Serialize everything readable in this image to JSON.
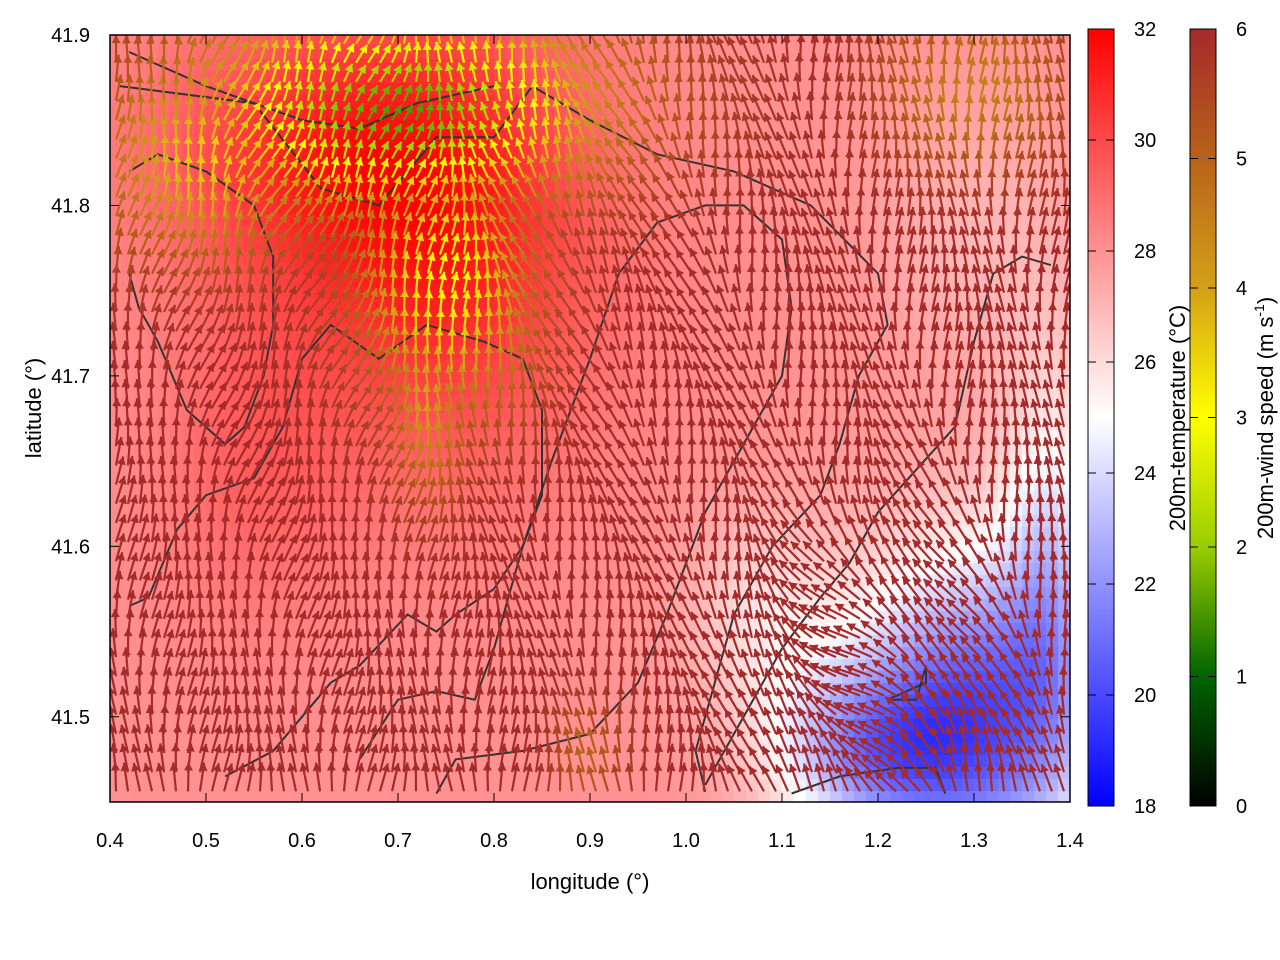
{
  "chart_data": {
    "type": "heatmap",
    "title": "",
    "xlabel": "longitude (°)",
    "ylabel": "latitude (°)",
    "xlim": [
      0.4,
      1.4
    ],
    "ylim": [
      41.45,
      41.9
    ],
    "xticks": [
      {
        "v": 0.4,
        "label": "0.4"
      },
      {
        "v": 0.5,
        "label": "0.5"
      },
      {
        "v": 0.6,
        "label": "0.6"
      },
      {
        "v": 0.7,
        "label": "0.7"
      },
      {
        "v": 0.8,
        "label": "0.8"
      },
      {
        "v": 0.9,
        "label": "0.9"
      },
      {
        "v": 1.0,
        "label": "1.0"
      },
      {
        "v": 1.1,
        "label": "1.1"
      },
      {
        "v": 1.2,
        "label": "1.2"
      },
      {
        "v": 1.3,
        "label": "1.3"
      },
      {
        "v": 1.4,
        "label": "1.4"
      }
    ],
    "yticks": [
      {
        "v": 41.5,
        "label": "41.5"
      },
      {
        "v": 41.6,
        "label": "41.6"
      },
      {
        "v": 41.7,
        "label": "41.7"
      },
      {
        "v": 41.8,
        "label": "41.8"
      },
      {
        "v": 41.9,
        "label": "41.9"
      }
    ],
    "temperature_colorbar": {
      "label": "200m-temperature (°C)",
      "range": [
        18,
        32
      ],
      "ticks": [
        {
          "v": 18,
          "label": "18"
        },
        {
          "v": 20,
          "label": "20"
        },
        {
          "v": 22,
          "label": "22"
        },
        {
          "v": 24,
          "label": "24"
        },
        {
          "v": 26,
          "label": "26"
        },
        {
          "v": 28,
          "label": "28"
        },
        {
          "v": 30,
          "label": "30"
        },
        {
          "v": 32,
          "label": "32"
        }
      ],
      "colors": [
        "#0000ff",
        "#ffffff",
        "#ff0000"
      ]
    },
    "wind_colorbar": {
      "label_main": "200m-wind speed (m s",
      "label_sup": "-1",
      "label_end": ")",
      "range": [
        0,
        6
      ],
      "ticks": [
        {
          "v": 0,
          "label": "0"
        },
        {
          "v": 1,
          "label": "1"
        },
        {
          "v": 2,
          "label": "2"
        },
        {
          "v": 3,
          "label": "3"
        },
        {
          "v": 4,
          "label": "4"
        },
        {
          "v": 5,
          "label": "5"
        },
        {
          "v": 6,
          "label": "6"
        }
      ],
      "colors": [
        "#000000",
        "#006400",
        "#9acd00",
        "#ffff00",
        "#d4a017",
        "#b8621b",
        "#a52a2a"
      ]
    },
    "contour_color": "#333333",
    "contours": [
      [
        [
          0.41,
          41.87
        ],
        [
          0.55,
          41.86
        ],
        [
          0.62,
          41.81
        ],
        [
          0.68,
          41.8
        ],
        [
          0.74,
          41.84
        ],
        [
          0.8,
          41.84
        ],
        [
          0.84,
          41.87
        ],
        [
          0.9,
          41.85
        ],
        [
          0.97,
          41.83
        ],
        [
          1.05,
          41.82
        ],
        [
          1.13,
          41.8
        ],
        [
          1.2,
          41.76
        ],
        [
          1.21,
          41.73
        ],
        [
          1.18,
          41.7
        ],
        [
          1.16,
          41.66
        ],
        [
          1.14,
          41.63
        ],
        [
          1.09,
          41.6
        ],
        [
          1.05,
          41.56
        ],
        [
          1.03,
          41.52
        ],
        [
          1.01,
          41.48
        ],
        [
          1.02,
          41.456
        ]
      ],
      [
        [
          0.42,
          41.565
        ],
        [
          0.44,
          41.57
        ],
        [
          0.47,
          41.61
        ],
        [
          0.5,
          41.63
        ],
        [
          0.55,
          41.64
        ],
        [
          0.58,
          41.67
        ],
        [
          0.6,
          41.71
        ],
        [
          0.63,
          41.73
        ],
        [
          0.68,
          41.71
        ],
        [
          0.73,
          41.73
        ],
        [
          0.79,
          41.72
        ],
        [
          0.83,
          41.71
        ],
        [
          0.85,
          41.68
        ],
        [
          0.85,
          41.63
        ],
        [
          0.83,
          41.6
        ],
        [
          0.8,
          41.575
        ],
        [
          0.76,
          41.56
        ],
        [
          0.74,
          41.55
        ],
        [
          0.71,
          41.56
        ],
        [
          0.66,
          41.53
        ],
        [
          0.63,
          41.52
        ],
        [
          0.6,
          41.5
        ],
        [
          0.57,
          41.48
        ],
        [
          0.52,
          41.465
        ]
      ],
      [
        [
          0.66,
          41.475
        ],
        [
          0.7,
          41.51
        ],
        [
          0.74,
          41.515
        ],
        [
          0.78,
          41.51
        ],
        [
          0.8,
          41.54
        ],
        [
          0.83,
          41.6
        ],
        [
          0.86,
          41.65
        ],
        [
          0.9,
          41.71
        ],
        [
          0.93,
          41.76
        ],
        [
          0.97,
          41.79
        ],
        [
          1.02,
          41.8
        ],
        [
          1.06,
          41.8
        ],
        [
          1.1,
          41.78
        ],
        [
          1.11,
          41.74
        ],
        [
          1.1,
          41.7
        ],
        [
          1.06,
          41.66
        ],
        [
          1.02,
          41.62
        ],
        [
          0.98,
          41.56
        ],
        [
          0.95,
          41.52
        ],
        [
          0.9,
          41.49
        ],
        [
          0.83,
          41.48
        ],
        [
          0.76,
          41.475
        ],
        [
          0.74,
          41.455
        ]
      ],
      [
        [
          1.02,
          41.46
        ],
        [
          1.06,
          41.5
        ],
        [
          1.1,
          41.54
        ],
        [
          1.14,
          41.57
        ],
        [
          1.17,
          41.59
        ],
        [
          1.2,
          41.62
        ],
        [
          1.24,
          41.645
        ],
        [
          1.28,
          41.67
        ],
        [
          1.3,
          41.72
        ],
        [
          1.32,
          41.76
        ],
        [
          1.35,
          41.77
        ],
        [
          1.38,
          41.765
        ]
      ],
      [
        [
          1.21,
          41.51
        ],
        [
          1.24,
          41.51
        ],
        [
          1.25,
          41.53
        ],
        [
          1.25,
          41.52
        ],
        [
          1.21,
          41.51
        ]
      ],
      [
        [
          1.11,
          41.455
        ],
        [
          1.16,
          41.465
        ],
        [
          1.22,
          41.47
        ],
        [
          1.26,
          41.47
        ],
        [
          1.27,
          41.455
        ]
      ],
      [
        [
          0.42,
          41.89
        ],
        [
          0.5,
          41.87
        ],
        [
          0.6,
          41.85
        ],
        [
          0.66,
          41.845
        ],
        [
          0.72,
          41.86
        ],
        [
          0.8,
          41.87
        ]
      ],
      [
        [
          0.42,
          41.76
        ],
        [
          0.43,
          41.74
        ],
        [
          0.45,
          41.72
        ],
        [
          0.48,
          41.68
        ],
        [
          0.52,
          41.66
        ],
        [
          0.54,
          41.67
        ],
        [
          0.56,
          41.7
        ],
        [
          0.57,
          41.73
        ],
        [
          0.57,
          41.77
        ],
        [
          0.55,
          41.8
        ],
        [
          0.5,
          41.82
        ],
        [
          0.45,
          41.83
        ],
        [
          0.42,
          41.82
        ]
      ]
    ],
    "temperature_field": {
      "background": 28.0,
      "features": [
        {
          "lon": 0.75,
          "lat": 41.78,
          "dT": 3.0,
          "rx": 0.17,
          "ry": 0.14
        },
        {
          "lon": 0.6,
          "lat": 41.83,
          "dT": 2.0,
          "rx": 0.18,
          "ry": 0.08
        },
        {
          "lon": 0.55,
          "lat": 41.65,
          "dT": 1.2,
          "rx": 0.1,
          "ry": 0.1
        },
        {
          "lon": 1.3,
          "lat": 41.5,
          "dT": -7.5,
          "rx": 0.13,
          "ry": 0.1
        },
        {
          "lon": 1.18,
          "lat": 41.48,
          "dT": -4.0,
          "rx": 0.1,
          "ry": 0.05
        },
        {
          "lon": 1.38,
          "lat": 41.6,
          "dT": -3.0,
          "rx": 0.05,
          "ry": 0.12
        },
        {
          "lon": 1.08,
          "lat": 41.56,
          "dT": -2.0,
          "rx": 0.08,
          "ry": 0.06
        },
        {
          "lon": 1.3,
          "lat": 41.78,
          "dT": -1.0,
          "rx": 0.1,
          "ry": 0.08
        }
      ]
    },
    "wind_field": {
      "grid_step_deg": 0.0125,
      "background_speed": 6.0,
      "slow_zones": [
        {
          "lon": 0.7,
          "lat": 41.85,
          "rx": 0.22,
          "ry": 0.06,
          "min_speed": 1.5
        },
        {
          "lon": 0.75,
          "lat": 41.75,
          "rx": 0.1,
          "ry": 0.08,
          "min_speed": 3.0
        },
        {
          "lon": 0.5,
          "lat": 41.82,
          "rx": 0.12,
          "ry": 0.06,
          "min_speed": 3.5
        },
        {
          "lon": 0.73,
          "lat": 41.68,
          "rx": 0.05,
          "ry": 0.06,
          "min_speed": 4.0
        },
        {
          "lon": 1.3,
          "lat": 41.86,
          "rx": 0.1,
          "ry": 0.05,
          "min_speed": 4.5
        },
        {
          "lon": 0.9,
          "lat": 41.47,
          "rx": 0.04,
          "ry": 0.03,
          "min_speed": 5.0
        }
      ]
    }
  }
}
